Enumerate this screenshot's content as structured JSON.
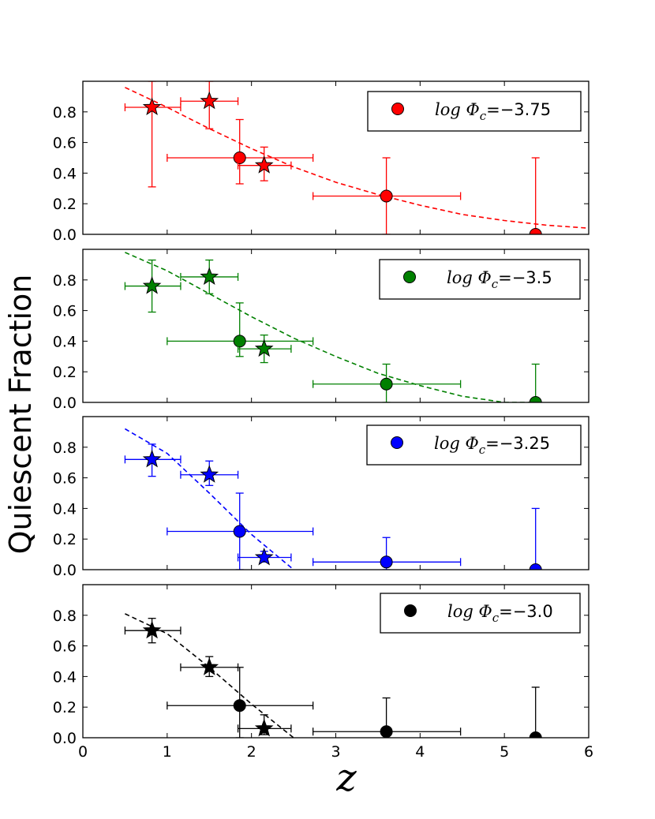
{
  "chart_data": {
    "type": "scatter",
    "xlabel": "z",
    "ylabel": "Quiescent Fraction",
    "xlim": [
      0,
      6
    ],
    "ylim": [
      0,
      1.0
    ],
    "xticks": [
      "0",
      "1",
      "2",
      "3",
      "4",
      "5",
      "6"
    ],
    "yticks": [
      "0.0",
      "0.2",
      "0.4",
      "0.6",
      "0.8"
    ],
    "panels": [
      {
        "color": "#ff0000",
        "legend_prefix": "log Φ",
        "legend_sub": "c",
        "legend_value": "=−3.75",
        "stars": [
          {
            "x": 0.82,
            "y": 0.83,
            "xlo": 0.5,
            "xhi": 1.16,
            "ylo": 0.31,
            "yhi": 1.0
          },
          {
            "x": 1.5,
            "y": 0.87,
            "xlo": 1.16,
            "xhi": 1.84,
            "ylo": 0.69,
            "yhi": 1.0
          },
          {
            "x": 2.15,
            "y": 0.45,
            "xlo": 1.84,
            "xhi": 2.47,
            "ylo": 0.35,
            "yhi": 0.57
          }
        ],
        "circles": [
          {
            "x": 1.86,
            "y": 0.5,
            "xlo": 1.0,
            "xhi": 2.73,
            "ylo": 0.33,
            "yhi": 0.75
          },
          {
            "x": 3.6,
            "y": 0.25,
            "xlo": 2.73,
            "xhi": 4.48,
            "ylo": 0.0,
            "yhi": 0.5
          },
          {
            "x": 5.37,
            "y": 0.0,
            "xlo": 5.37,
            "xhi": 5.37,
            "ylo": 0.0,
            "yhi": 0.5
          }
        ],
        "fit": {
          "x": [
            0.5,
            1.0,
            1.5,
            2.0,
            2.5,
            3.0,
            3.5,
            4.0,
            4.5,
            5.0,
            5.5,
            6.0
          ],
          "y": [
            0.96,
            0.83,
            0.69,
            0.56,
            0.44,
            0.34,
            0.26,
            0.19,
            0.13,
            0.09,
            0.06,
            0.04
          ]
        }
      },
      {
        "color": "#008000",
        "legend_prefix": "log Φ",
        "legend_sub": "c",
        "legend_value": "=−3.5",
        "stars": [
          {
            "x": 0.82,
            "y": 0.76,
            "xlo": 0.5,
            "xhi": 1.16,
            "ylo": 0.59,
            "yhi": 0.93
          },
          {
            "x": 1.5,
            "y": 0.82,
            "xlo": 1.16,
            "xhi": 1.84,
            "ylo": 0.71,
            "yhi": 0.93
          },
          {
            "x": 2.15,
            "y": 0.35,
            "xlo": 1.84,
            "xhi": 2.47,
            "ylo": 0.26,
            "yhi": 0.44
          }
        ],
        "circles": [
          {
            "x": 1.86,
            "y": 0.4,
            "xlo": 1.0,
            "xhi": 2.73,
            "ylo": 0.3,
            "yhi": 0.65
          },
          {
            "x": 3.6,
            "y": 0.12,
            "xlo": 2.73,
            "xhi": 4.48,
            "ylo": 0.0,
            "yhi": 0.25
          },
          {
            "x": 5.37,
            "y": 0.0,
            "xlo": 5.37,
            "xhi": 5.37,
            "ylo": 0.0,
            "yhi": 0.25
          }
        ],
        "fit": {
          "x": [
            0.5,
            1.0,
            1.5,
            2.0,
            2.5,
            3.0,
            3.5,
            4.0,
            4.5,
            5.0,
            5.3
          ],
          "y": [
            0.98,
            0.86,
            0.71,
            0.56,
            0.42,
            0.3,
            0.19,
            0.11,
            0.04,
            0.0,
            0.0
          ]
        }
      },
      {
        "color": "#0000ff",
        "legend_prefix": "log Φ",
        "legend_sub": "c",
        "legend_value": "=−3.25",
        "stars": [
          {
            "x": 0.82,
            "y": 0.72,
            "xlo": 0.5,
            "xhi": 1.16,
            "ylo": 0.61,
            "yhi": 0.82
          },
          {
            "x": 1.5,
            "y": 0.62,
            "xlo": 1.16,
            "xhi": 1.84,
            "ylo": 0.55,
            "yhi": 0.71
          },
          {
            "x": 2.15,
            "y": 0.08,
            "xlo": 1.84,
            "xhi": 2.47,
            "ylo": 0.05,
            "yhi": 0.12
          }
        ],
        "circles": [
          {
            "x": 1.86,
            "y": 0.25,
            "xlo": 1.0,
            "xhi": 2.73,
            "ylo": 0.0,
            "yhi": 0.5
          },
          {
            "x": 3.6,
            "y": 0.05,
            "xlo": 2.73,
            "xhi": 4.48,
            "ylo": 0.0,
            "yhi": 0.21
          },
          {
            "x": 5.37,
            "y": 0.0,
            "xlo": 5.37,
            "xhi": 5.37,
            "ylo": 0.0,
            "yhi": 0.4
          }
        ],
        "fit": {
          "x": [
            0.5,
            1.0,
            1.5,
            2.0,
            2.5
          ],
          "y": [
            0.92,
            0.76,
            0.5,
            0.23,
            0.0
          ]
        }
      },
      {
        "color": "#000000",
        "legend_prefix": "log Φ",
        "legend_sub": "c",
        "legend_value": "=−3.0",
        "stars": [
          {
            "x": 0.82,
            "y": 0.7,
            "xlo": 0.5,
            "xhi": 1.16,
            "ylo": 0.62,
            "yhi": 0.78
          },
          {
            "x": 1.5,
            "y": 0.46,
            "xlo": 1.16,
            "xhi": 1.84,
            "ylo": 0.4,
            "yhi": 0.53
          },
          {
            "x": 2.15,
            "y": 0.06,
            "xlo": 1.84,
            "xhi": 2.47,
            "ylo": 0.02,
            "yhi": 0.15
          }
        ],
        "circles": [
          {
            "x": 1.86,
            "y": 0.21,
            "xlo": 1.0,
            "xhi": 2.73,
            "ylo": 0.0,
            "yhi": 0.46
          },
          {
            "x": 3.6,
            "y": 0.04,
            "xlo": 2.73,
            "xhi": 4.48,
            "ylo": 0.0,
            "yhi": 0.26
          },
          {
            "x": 5.37,
            "y": 0.0,
            "xlo": 5.37,
            "xhi": 5.37,
            "ylo": 0.0,
            "yhi": 0.33
          }
        ],
        "fit": {
          "x": [
            0.5,
            1.0,
            1.5,
            2.0,
            2.5
          ],
          "y": [
            0.81,
            0.68,
            0.46,
            0.22,
            0.0
          ]
        }
      }
    ]
  }
}
